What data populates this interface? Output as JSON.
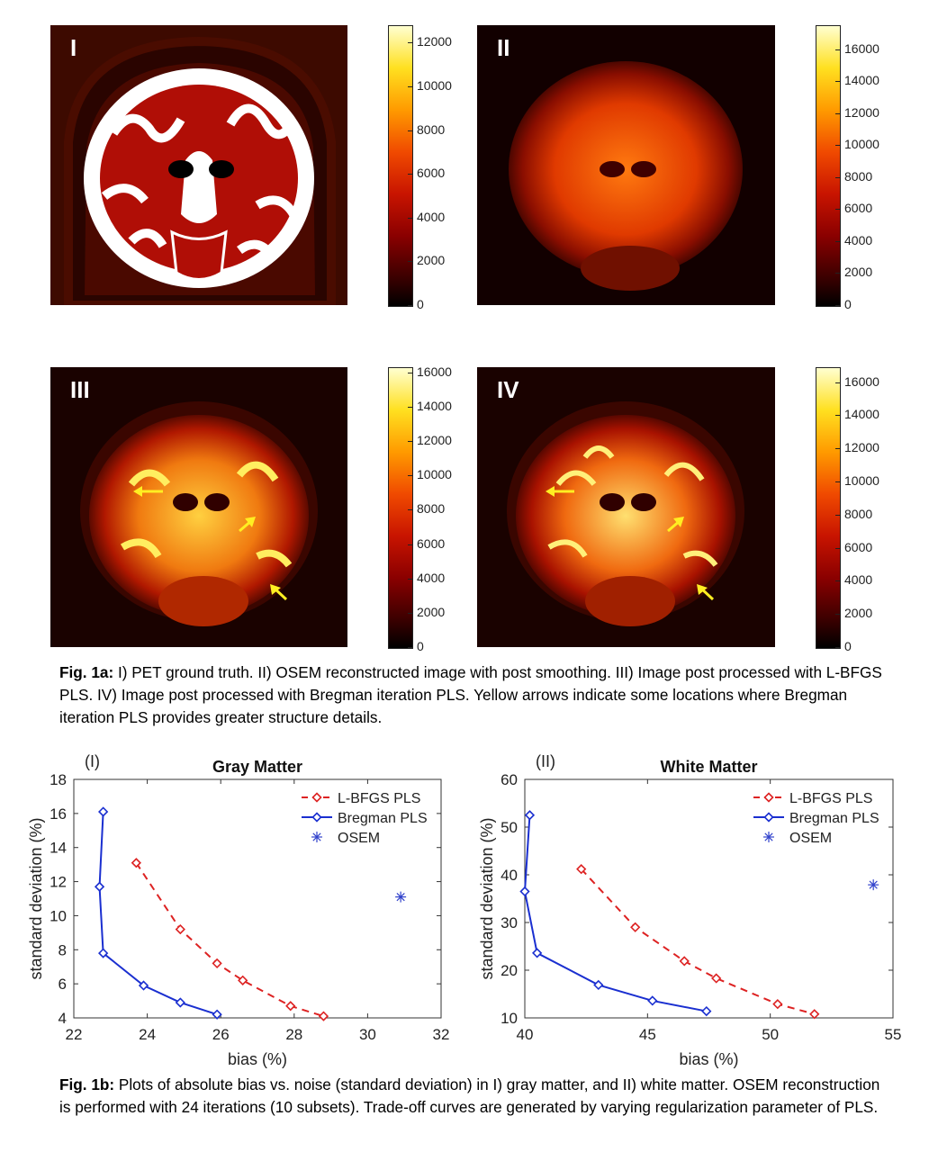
{
  "fig1a": {
    "panels": [
      {
        "label": "I",
        "colorbar_ticks": [
          "0",
          "2000",
          "4000",
          "6000",
          "8000",
          "10000",
          "12000"
        ],
        "colorbar_max": 12800
      },
      {
        "label": "II",
        "colorbar_ticks": [
          "0",
          "2000",
          "4000",
          "6000",
          "8000",
          "10000",
          "12000",
          "14000",
          "16000"
        ],
        "colorbar_max": 17500
      },
      {
        "label": "III",
        "colorbar_ticks": [
          "0",
          "2000",
          "4000",
          "6000",
          "8000",
          "10000",
          "12000",
          "14000",
          "16000"
        ],
        "colorbar_max": 16300
      },
      {
        "label": "IV",
        "colorbar_ticks": [
          "0",
          "2000",
          "4000",
          "6000",
          "8000",
          "10000",
          "12000",
          "14000",
          "16000"
        ],
        "colorbar_max": 16900
      }
    ],
    "arrow_color": "#ffee22",
    "caption_label": "Fig. 1a:",
    "caption_text": " I) PET ground truth. II) OSEM reconstructed image with post smoothing. III) Image post processed with L-BFGS PLS. IV) Image post processed with Bregman iteration PLS. Yellow arrows indicate some locations where Bregman iteration PLS provides greater structure details."
  },
  "chart_data": [
    {
      "type": "line",
      "panel_label": "(I)",
      "title": "Gray Matter",
      "xlabel": "bias (%)",
      "ylabel": "standard deviation (%)",
      "xlim": [
        22,
        32
      ],
      "ylim": [
        4,
        18
      ],
      "xticks": [
        22,
        24,
        26,
        28,
        30,
        32
      ],
      "yticks": [
        4,
        6,
        8,
        10,
        12,
        14,
        16,
        18
      ],
      "legend_position": "top-right",
      "series": [
        {
          "name": "L-BFGS PLS",
          "color": "#dd2222",
          "style": "dashed",
          "marker": "diamond",
          "x": [
            23.7,
            24.9,
            25.9,
            26.6,
            27.9,
            28.8
          ],
          "y": [
            13.1,
            9.2,
            7.2,
            6.2,
            4.7,
            4.1
          ]
        },
        {
          "name": "Bregman PLS",
          "color": "#1a2fd0",
          "style": "solid",
          "marker": "diamond",
          "x": [
            22.8,
            22.7,
            22.8,
            23.9,
            24.9,
            25.9
          ],
          "y": [
            16.1,
            11.7,
            7.8,
            5.9,
            4.9,
            4.2
          ]
        },
        {
          "name": "OSEM",
          "color": "#3344cc",
          "style": "none",
          "marker": "asterisk",
          "x": [
            30.9
          ],
          "y": [
            11.1
          ]
        }
      ]
    },
    {
      "type": "line",
      "panel_label": "(II)",
      "title": "White Matter",
      "xlabel": "bias (%)",
      "ylabel": "standard deviation (%)",
      "xlim": [
        40,
        55
      ],
      "ylim": [
        10,
        60
      ],
      "xticks": [
        40,
        45,
        50,
        55
      ],
      "yticks": [
        10,
        20,
        30,
        40,
        50,
        60
      ],
      "legend_position": "top-right",
      "series": [
        {
          "name": "L-BFGS PLS",
          "color": "#dd2222",
          "style": "dashed",
          "marker": "diamond",
          "x": [
            42.3,
            44.5,
            46.5,
            47.8,
            50.3,
            51.8
          ],
          "y": [
            41.2,
            29.0,
            21.9,
            18.3,
            12.9,
            10.8
          ]
        },
        {
          "name": "Bregman PLS",
          "color": "#1a2fd0",
          "style": "solid",
          "marker": "diamond",
          "x": [
            40.2,
            40.0,
            40.5,
            43.0,
            45.2,
            47.4
          ],
          "y": [
            52.5,
            36.5,
            23.6,
            16.9,
            13.6,
            11.4
          ]
        },
        {
          "name": "OSEM",
          "color": "#3344cc",
          "style": "none",
          "marker": "asterisk",
          "x": [
            54.2
          ],
          "y": [
            37.9
          ]
        }
      ]
    }
  ],
  "fig1b": {
    "caption_label": "Fig. 1b:",
    "caption_text": " Plots of absolute bias vs. noise (standard deviation) in I)  gray matter, and II) white matter. OSEM reconstruction is performed with 24 iterations (10 subsets). Trade-off curves are generated by varying regularization parameter of PLS."
  }
}
